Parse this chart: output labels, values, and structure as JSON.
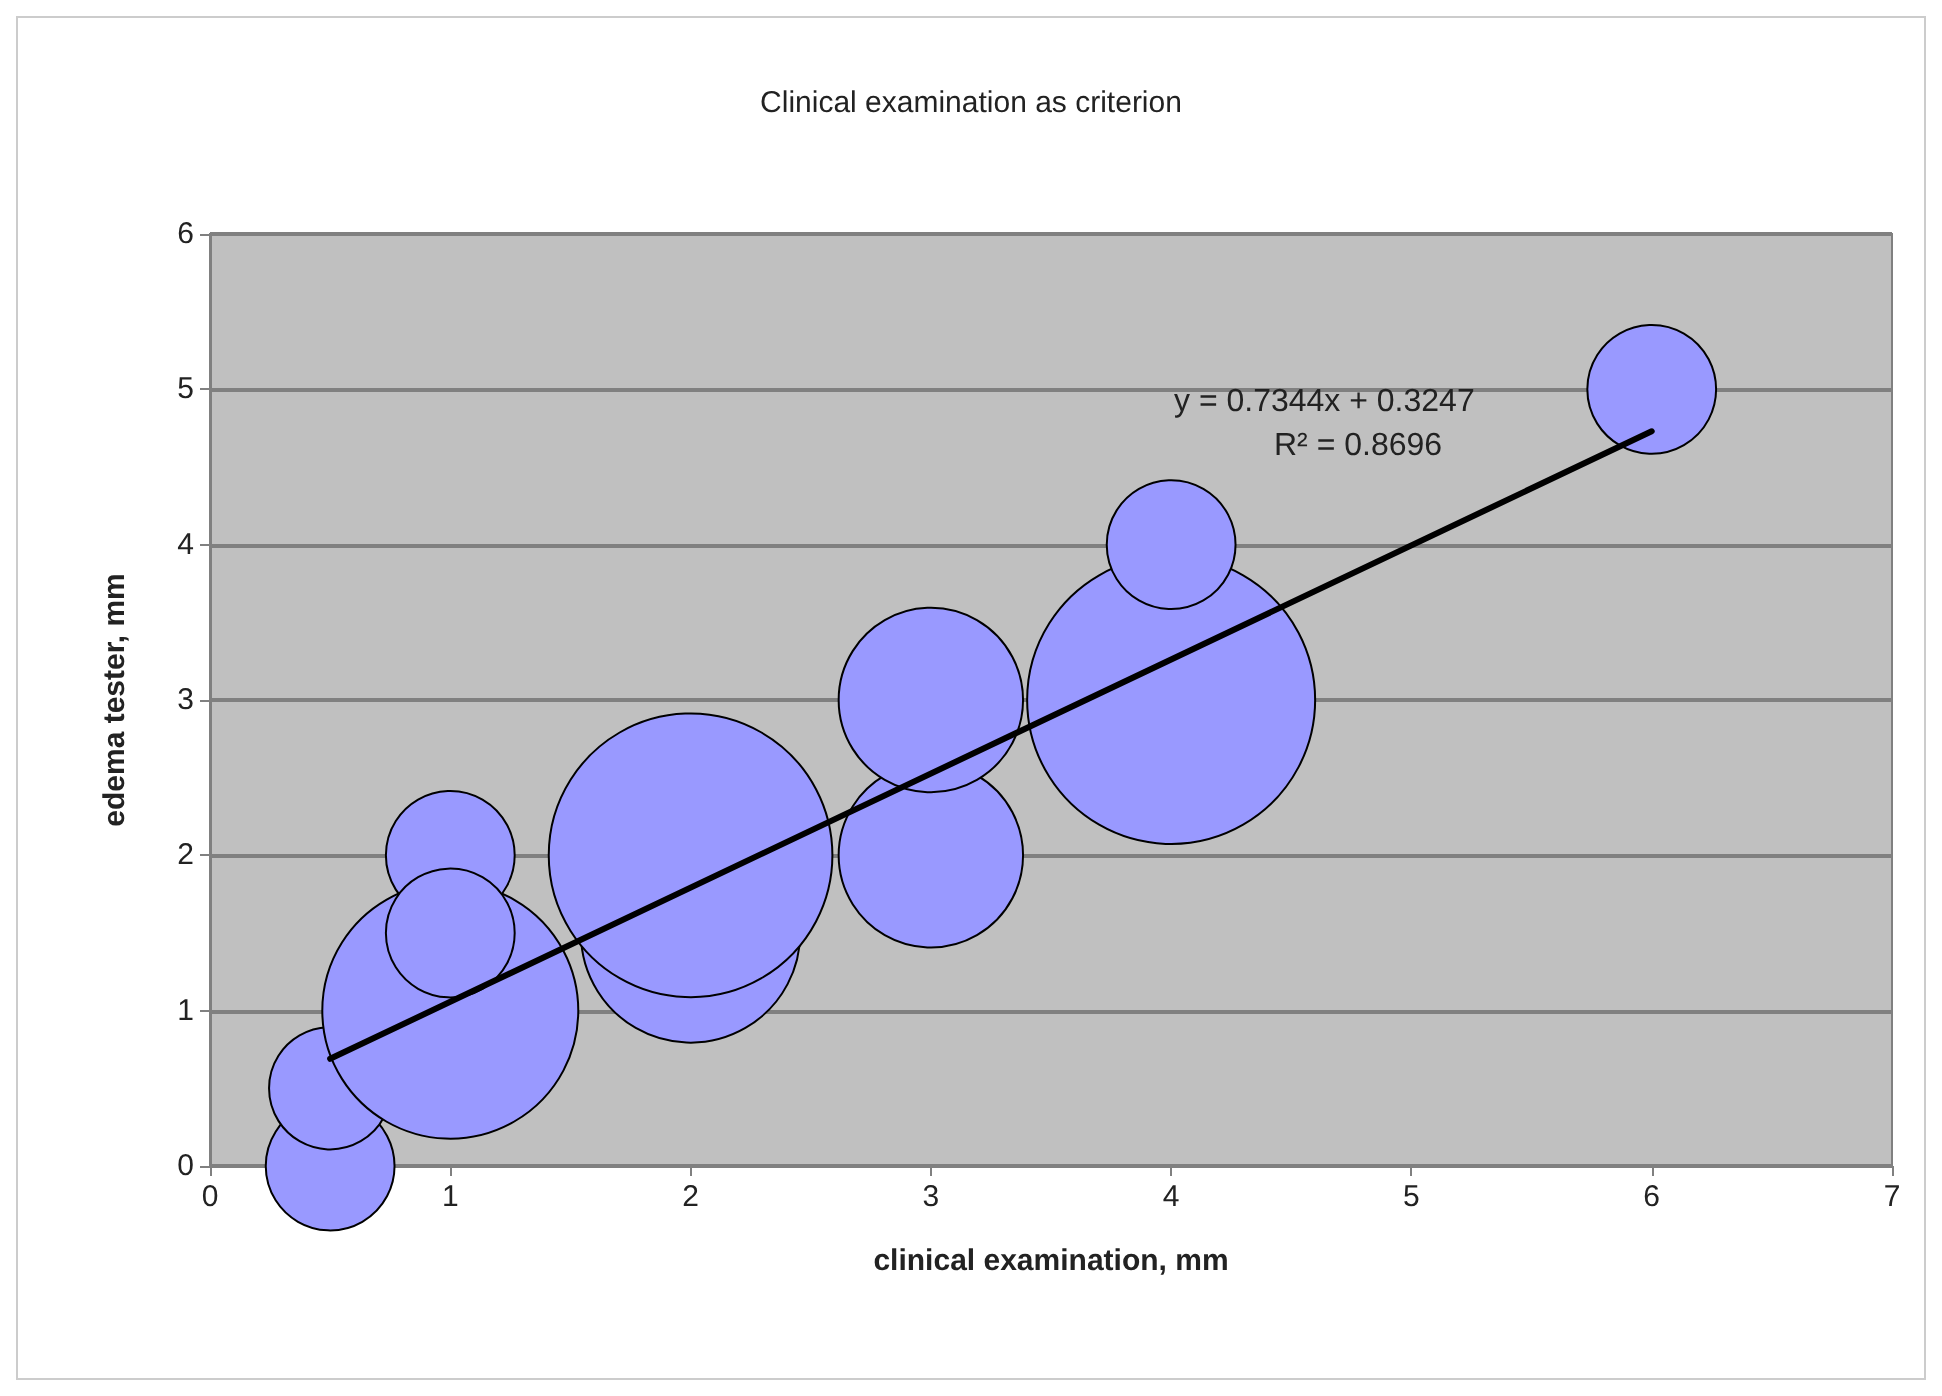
{
  "chart_data": {
    "type": "bubble",
    "title": "Clinical examination as criterion",
    "xlabel": "clinical examination, mm",
    "ylabel": "edema tester, mm",
    "xlim": [
      0,
      7
    ],
    "xticks": [
      0,
      1,
      2,
      3,
      4,
      5,
      6,
      7
    ],
    "ylim": [
      0,
      6
    ],
    "yticks": [
      0,
      1,
      2,
      3,
      4,
      5,
      6
    ],
    "grid": "y",
    "series": [
      {
        "color": "#9999ff",
        "x": [
          0.5,
          0.5,
          1,
          1,
          2,
          2,
          3,
          3,
          4,
          4,
          6,
          1
        ],
        "values": [
          0,
          0.5,
          1,
          2,
          1.5,
          2,
          2,
          3,
          3,
          4,
          5,
          1.5
        ],
        "sizes": [
          0.2,
          0.18,
          0.79,
          0.2,
          0.58,
          0.97,
          0.41,
          0.41,
          1,
          0.2,
          0.2,
          0.2
        ]
      },
      {
        "type": "line",
        "color": "#000000",
        "x": [
          0.5,
          6
        ],
        "values": [
          0.69,
          4.73
        ]
      }
    ],
    "annotations": [
      "y = 0.7344x + 0.3247",
      "R² = 0.8696"
    ]
  }
}
